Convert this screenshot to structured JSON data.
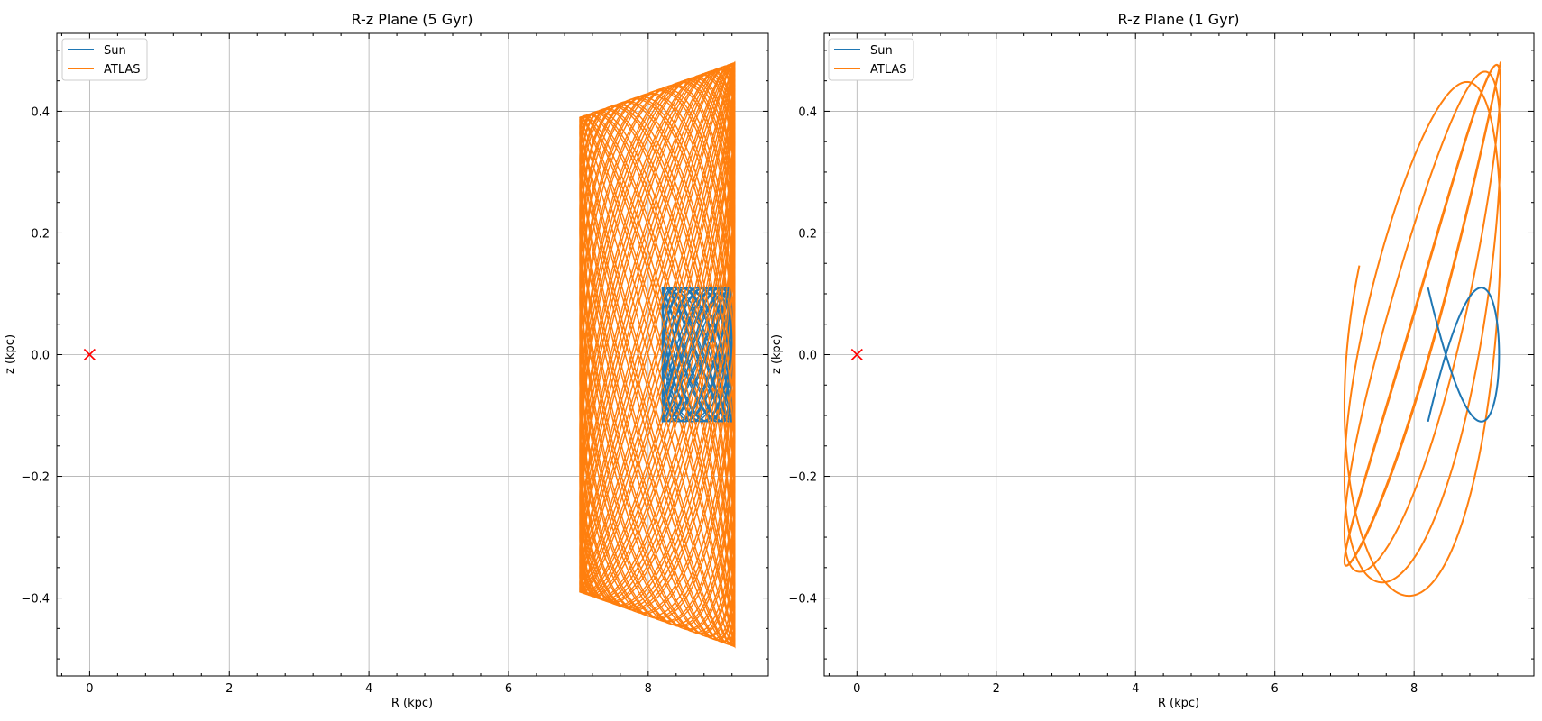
{
  "chart_data": [
    {
      "type": "line",
      "title": "R-z Plane (5 Gyr)",
      "xlabel": "R (kpc)",
      "ylabel": "z (kpc)",
      "xlim": [
        -0.47,
        9.72
      ],
      "ylim": [
        -0.528,
        0.528
      ],
      "xticks": [
        0,
        2,
        4,
        6,
        8
      ],
      "yticks": [
        -0.4,
        -0.2,
        0.0,
        0.2,
        0.4
      ],
      "xtick_labels": [
        "0",
        "2",
        "4",
        "6",
        "8"
      ],
      "ytick_labels": [
        "−0.4",
        "−0.2",
        "0.0",
        "0.2",
        "0.4"
      ],
      "grid": true,
      "legend": {
        "position": "top-left",
        "entries": [
          "Sun",
          "ATLAS"
        ]
      },
      "series": [
        {
          "name": "Sun",
          "color": "#1f77b4",
          "R_range": [
            8.2,
            9.2
          ],
          "z_amplitude": 0.11,
          "duration_gyr": 5
        },
        {
          "name": "ATLAS",
          "color": "#ff7f0e",
          "R_range": [
            7.02,
            9.24
          ],
          "z_amplitude_at_Rmin": 0.39,
          "z_amplitude_at_Rmax": 0.48,
          "duration_gyr": 5
        }
      ],
      "marker": {
        "label": "Galactic center",
        "x": 0,
        "y": 0,
        "symbol": "x",
        "color": "#ff0000"
      }
    },
    {
      "type": "line",
      "title": "R-z Plane (1 Gyr)",
      "xlabel": "R (kpc)",
      "ylabel": "z (kpc)",
      "xlim": [
        -0.47,
        9.72
      ],
      "ylim": [
        -0.528,
        0.528
      ],
      "xticks": [
        0,
        2,
        4,
        6,
        8
      ],
      "yticks": [
        -0.4,
        -0.2,
        0.0,
        0.2,
        0.4
      ],
      "xtick_labels": [
        "0",
        "2",
        "4",
        "6",
        "8"
      ],
      "ytick_labels": [
        "−0.4",
        "−0.2",
        "0.0",
        "0.2",
        "0.4"
      ],
      "grid": true,
      "legend": {
        "position": "top-left",
        "entries": [
          "Sun",
          "ATLAS"
        ]
      },
      "series": [
        {
          "name": "Sun",
          "color": "#1f77b4",
          "R_range": [
            8.2,
            9.22
          ],
          "z_amplitude": 0.11,
          "duration_gyr": 1
        },
        {
          "name": "ATLAS",
          "color": "#ff7f0e",
          "R_range": [
            7.0,
            9.24
          ],
          "z_amplitude": 0.48,
          "duration_gyr": 1,
          "end_point": [
            7.8,
            -0.28
          ]
        }
      ],
      "marker": {
        "label": "Galactic center",
        "x": 0,
        "y": 0,
        "symbol": "x",
        "color": "#ff0000"
      }
    }
  ]
}
